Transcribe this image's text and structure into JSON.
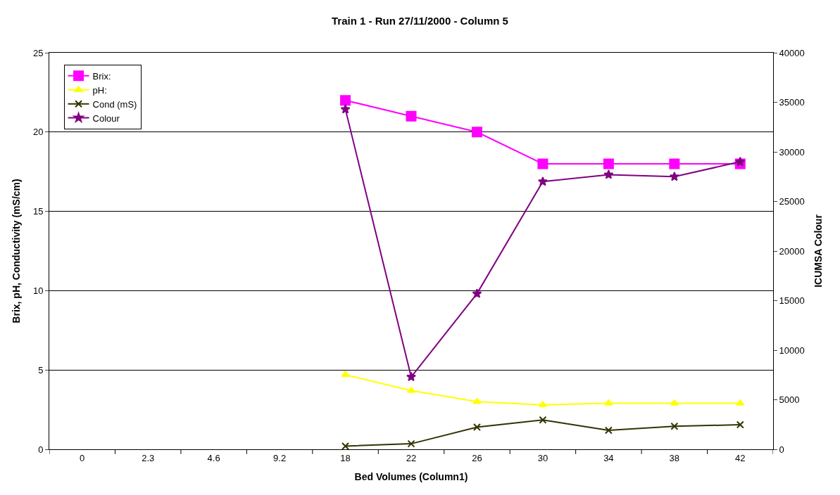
{
  "chart_data": {
    "type": "line",
    "title": "Train 1 - Run 27/11/2000 - Column 5",
    "xlabel": "Bed Volumes (Column1)",
    "ylabel": "Brix, pH, Conductivity (mS/cm)",
    "y2label": "ICUMSA Colour",
    "categories": [
      "0",
      "2.3",
      "4.6",
      "9.2",
      "18",
      "22",
      "26",
      "30",
      "34",
      "38",
      "42"
    ],
    "series": [
      {
        "name": "Brix:",
        "color": "#ff00ff",
        "marker": "square",
        "values": [
          null,
          null,
          null,
          null,
          22,
          21,
          20,
          18,
          18,
          18,
          18
        ]
      },
      {
        "name": "pH:",
        "color": "#ffff00",
        "marker": "triangle",
        "values": [
          null,
          null,
          null,
          null,
          4.7,
          3.7,
          3.0,
          2.8,
          2.9,
          2.9,
          2.9
        ]
      },
      {
        "name": "Cond (mS)",
        "color": "#333300",
        "marker": "cross",
        "values": [
          null,
          null,
          null,
          null,
          0.2,
          0.35,
          1.4,
          1.85,
          1.2,
          1.45,
          1.55
        ]
      },
      {
        "name": "Colour",
        "color": "#800080",
        "marker": "star",
        "axis": "y2",
        "values": [
          null,
          null,
          null,
          null,
          34300,
          7300,
          15700,
          27000,
          27700,
          27500,
          29000
        ]
      }
    ],
    "ylim": [
      0,
      25
    ],
    "yticks": [
      0,
      5,
      10,
      15,
      20,
      25
    ],
    "y2lim": [
      0,
      40000
    ],
    "y2ticks": [
      0,
      5000,
      10000,
      15000,
      20000,
      25000,
      30000,
      35000,
      40000
    ],
    "grid": "y",
    "legend": "top left",
    "line_style": "solid"
  }
}
